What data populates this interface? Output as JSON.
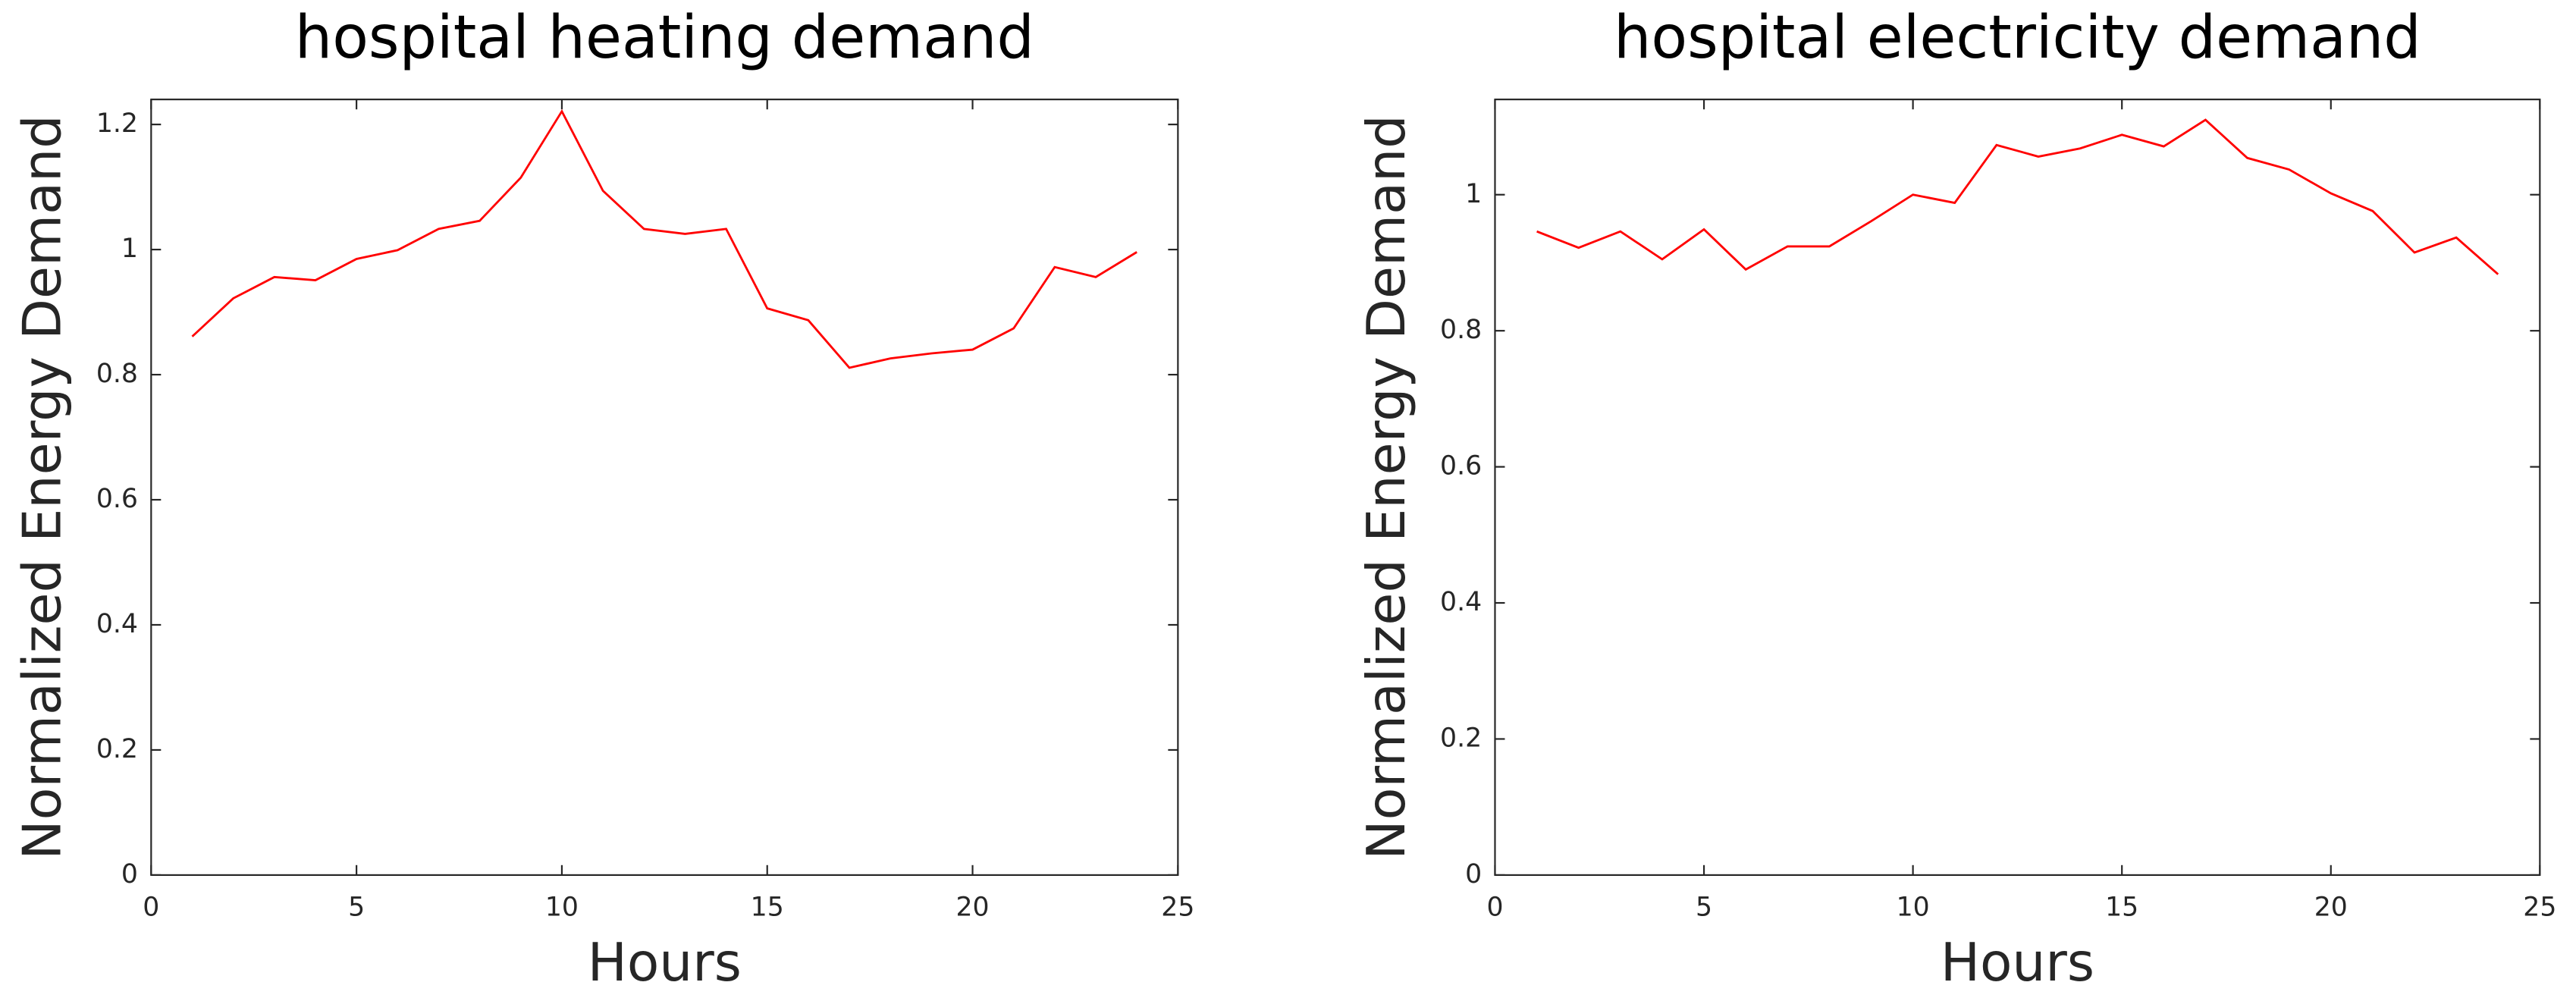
{
  "chart_data": [
    {
      "type": "line",
      "title": "hospital heating demand",
      "xlabel": "Hours",
      "ylabel": "Normalized Energy Demand",
      "x": [
        1,
        2,
        3,
        4,
        5,
        6,
        7,
        8,
        9,
        10,
        11,
        12,
        13,
        14,
        15,
        16,
        17,
        18,
        19,
        20,
        21,
        22,
        23,
        24
      ],
      "values": [
        0.861,
        0.922,
        0.956,
        0.951,
        0.985,
        0.999,
        1.033,
        1.046,
        1.115,
        1.221,
        1.094,
        1.033,
        1.025,
        1.033,
        0.906,
        0.887,
        0.811,
        0.826,
        0.834,
        0.84,
        0.874,
        0.972,
        0.956,
        0.996
      ],
      "color": "#ff0000",
      "xlim": [
        0,
        25
      ],
      "xticks": [
        0,
        5,
        10,
        15,
        20,
        25
      ],
      "ylim": [
        0,
        1.24
      ],
      "yticks": [
        0,
        0.2,
        0.4,
        0.6,
        0.8,
        1,
        1.2
      ]
    },
    {
      "type": "line",
      "title": "hospital electricity demand",
      "xlabel": "Hours",
      "ylabel": "Normalized Energy Demand",
      "x": [
        1,
        2,
        3,
        4,
        5,
        6,
        7,
        8,
        9,
        10,
        11,
        12,
        13,
        14,
        15,
        16,
        17,
        18,
        19,
        20,
        21,
        22,
        23,
        24
      ],
      "values": [
        0.946,
        0.922,
        0.946,
        0.905,
        0.949,
        0.89,
        0.924,
        0.924,
        0.961,
        1.0,
        0.988,
        1.073,
        1.056,
        1.068,
        1.088,
        1.071,
        1.11,
        1.054,
        1.037,
        1.002,
        0.976,
        0.915,
        0.937,
        0.883
      ],
      "color": "#ff0000",
      "xlim": [
        0,
        25
      ],
      "xticks": [
        0,
        5,
        10,
        15,
        20,
        25
      ],
      "ylim": [
        0,
        1.14
      ],
      "yticks": [
        0,
        0.2,
        0.4,
        0.6,
        0.8,
        1
      ]
    }
  ]
}
